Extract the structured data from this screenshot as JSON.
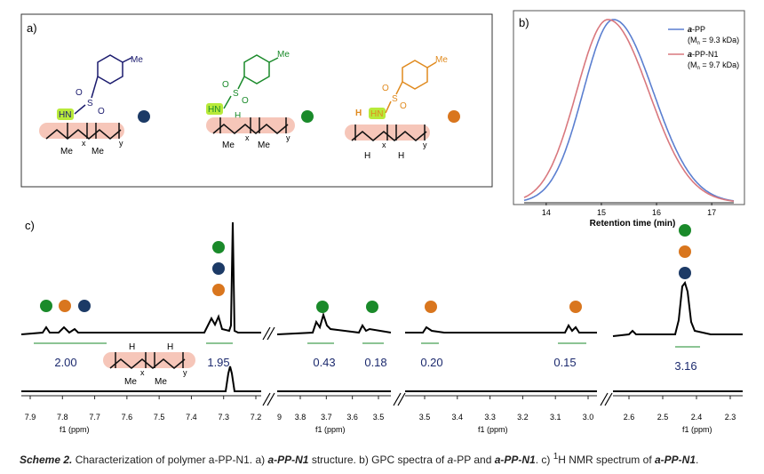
{
  "panel_a": {
    "label": "a)",
    "structures": [
      {
        "name": "structure-1",
        "color": "#1b1b6e",
        "methyl": "Me",
        "nh": "HN",
        "so2_s": "S",
        "so2_o": "O",
        "x": "x",
        "y": "y",
        "me1": "Me",
        "me2": "Me",
        "marker": "navy"
      },
      {
        "name": "structure-2",
        "color": "#1a8a2a",
        "methyl": "Me",
        "nh": "HN",
        "so2_s": "S",
        "so2_o": "O",
        "h": "H",
        "x": "x",
        "y": "y",
        "me1": "Me",
        "me2": "Me",
        "marker": "green"
      },
      {
        "name": "structure-3",
        "color": "#e08a1e",
        "methyl": "Me",
        "nh": "HN",
        "so2_s": "S",
        "so2_o": "O",
        "h": "H",
        "x": "x",
        "y": "y",
        "h1": "H",
        "h2": "H",
        "marker": "orange"
      }
    ]
  },
  "panel_b": {
    "label": "b)",
    "chart_data": {
      "type": "line",
      "xlabel": "Retention time (min)",
      "xlim": [
        13.6,
        17.4
      ],
      "xticks": [
        "14",
        "15",
        "16",
        "17"
      ],
      "series": [
        {
          "name": "a-PP",
          "prefix": "a",
          "suffix": "-PP",
          "mn_label": "(M",
          "mn_sub": "n",
          "mn_value": " = 9.3 kDa)",
          "color": "#5b7fd0",
          "peak": 15.22,
          "width_left": 0.55,
          "width_right": 0.72
        },
        {
          "name": "a-PP-N1",
          "prefix": "a",
          "suffix": "-PP-N1",
          "mn_label": "(M",
          "mn_sub": "n",
          "mn_value": " = 9.7 kDa)",
          "color": "#d9787e",
          "peak": 15.12,
          "width_left": 0.57,
          "width_right": 0.74
        }
      ]
    }
  },
  "panel_c": {
    "label": "c)",
    "axis_label": "f1 (ppm)",
    "segments": [
      {
        "ticks": [
          "7.9",
          "7.8",
          "7.7",
          "7.6",
          "7.5",
          "7.4",
          "7.3",
          "7.2"
        ],
        "integrals": [
          "2.00",
          "1.95"
        ]
      },
      {
        "ticks": [
          "3.8",
          "3.7",
          "3.6",
          "3.5"
        ],
        "first_tick": "9",
        "integrals": [
          "0.43",
          "0.18"
        ]
      },
      {
        "ticks": [
          "3.5",
          "3.4",
          "3.3",
          "3.2",
          "3.1",
          "3.0"
        ],
        "integrals": [
          "0.20",
          "0.15"
        ]
      },
      {
        "ticks": [
          "2.6",
          "2.5",
          "2.4",
          "2.3"
        ],
        "integrals": [
          "3.16"
        ]
      }
    ],
    "inset_structure": {
      "h": "H",
      "x": "x",
      "y": "y",
      "me1": "Me",
      "me2": "Me"
    }
  },
  "marker_colors": {
    "green": "#1a8a2a",
    "orange": "#d9761e",
    "navy": "#1c3a66"
  },
  "caption": {
    "scheme": "Scheme 2.",
    "text1": " Characterization of polymer a-PP-N1. a) ",
    "b1": "a-PP-N1",
    "text2": " structure. b) GPC spectra of ",
    "i1": "a",
    "text3": "-PP and ",
    "b2": "a-PP-N1",
    "text4": ". c) ",
    "sup": "1",
    "text5": "H NMR spectrum of ",
    "b3": "a-PP-N1",
    "text6": "."
  }
}
